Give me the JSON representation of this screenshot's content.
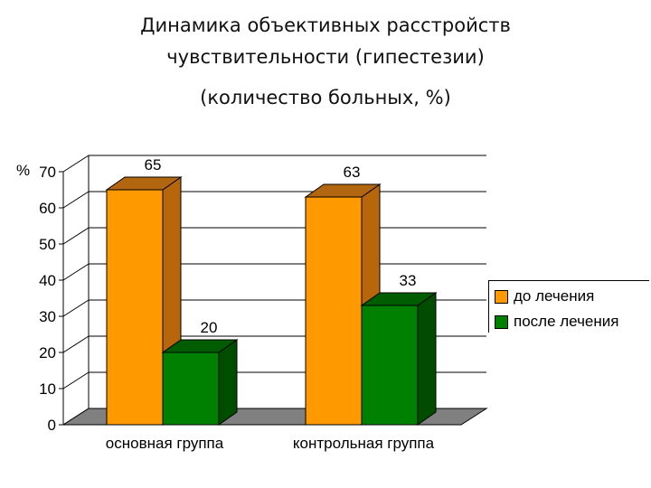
{
  "colors": {
    "series_1_front": "#ff9900",
    "series_1_side": "#b8660c",
    "series_1_top": "#b36610",
    "series_2_front": "#008000",
    "series_2_side": "#004d00",
    "series_2_top": "#005c00",
    "floor": "#808080",
    "wall_grid": "#000000"
  },
  "chart_data": {
    "type": "bar",
    "title_line_1": "Динамика объективных расстройств",
    "title_line_2": "чувствительности (гипестезии)",
    "subtitle": "(количество больных, %)",
    "ylabel": "%",
    "ylim": [
      0,
      70
    ],
    "yticks": [
      0,
      10,
      20,
      30,
      40,
      50,
      60,
      70
    ],
    "grid": true,
    "view": "3d-clustered",
    "legend_position": "right",
    "categories": [
      "основная группа",
      "контрольная группа"
    ],
    "series": [
      {
        "name": "до лечения",
        "values": [
          65,
          63
        ]
      },
      {
        "name": "после лечения",
        "values": [
          20,
          33
        ]
      }
    ]
  }
}
